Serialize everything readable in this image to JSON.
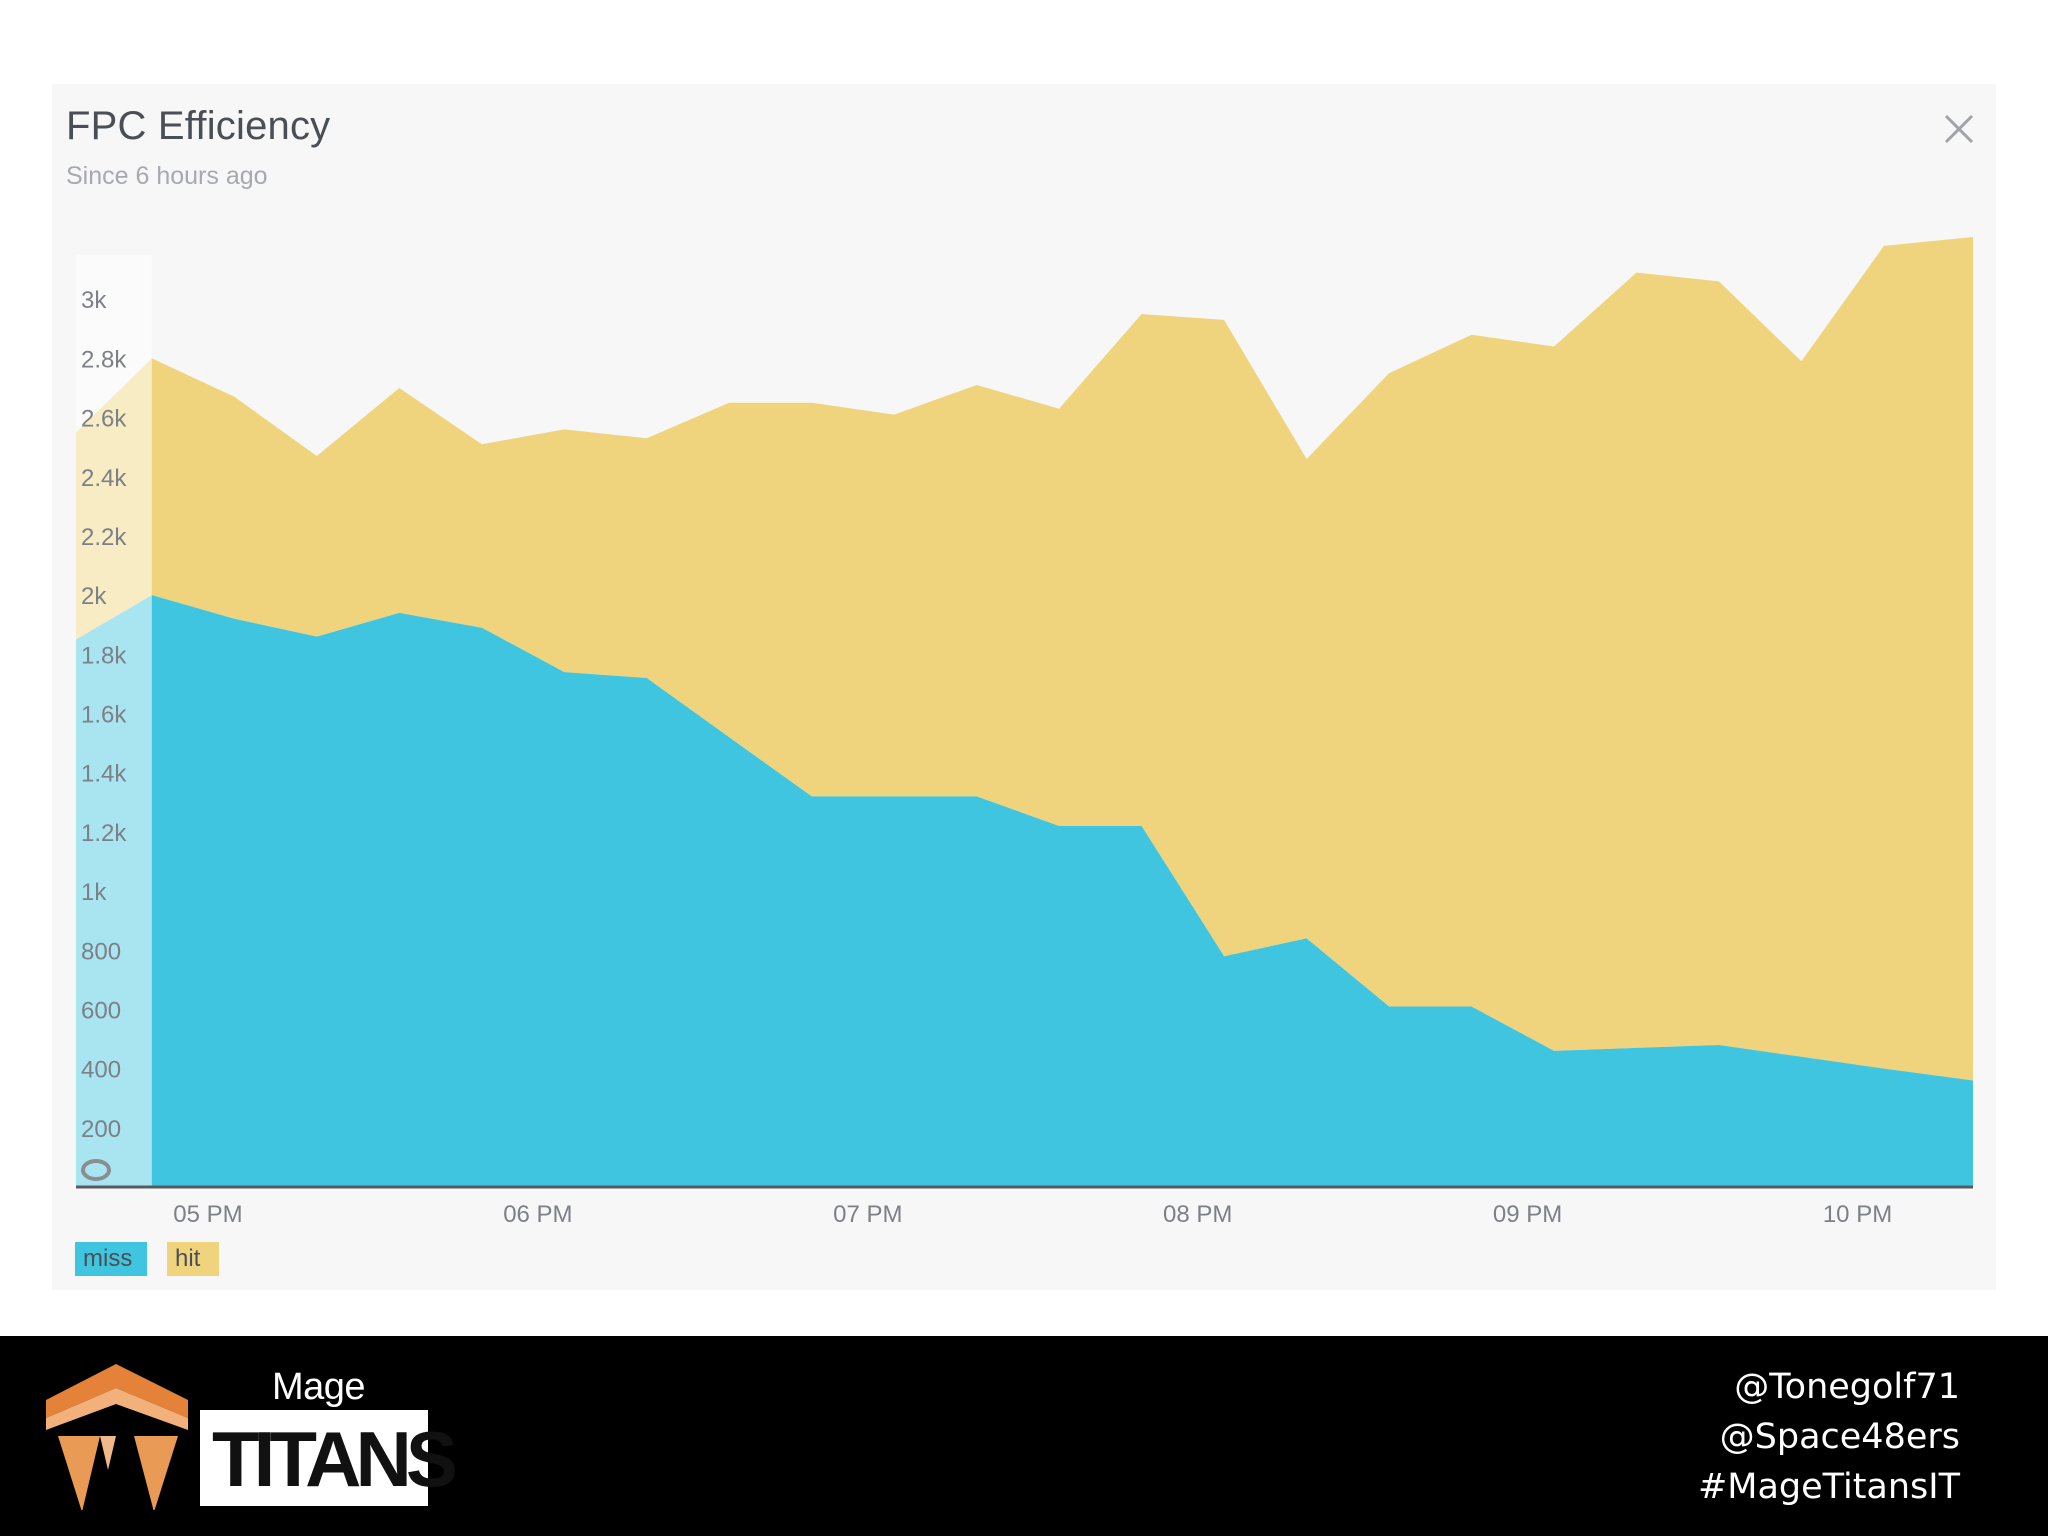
{
  "widget": {
    "title": "FPC Efficiency",
    "subtitle": "Since 6 hours ago"
  },
  "chart_data": {
    "type": "area",
    "stacked": true,
    "title": "FPC Efficiency",
    "subtitle": "Since 6 hours ago",
    "xlabel": "",
    "ylabel": "",
    "ylim": [
      0,
      3200
    ],
    "y_ticks": [
      "200",
      "400",
      "600",
      "800",
      "1k",
      "1.2k",
      "1.4k",
      "1.6k",
      "1.8k",
      "2k",
      "2.2k",
      "2.4k",
      "2.6k",
      "2.8k",
      "3k"
    ],
    "x_ticks": [
      {
        "label": "05 PM",
        "t": 17.0
      },
      {
        "label": "06 PM",
        "t": 18.0
      },
      {
        "label": "07 PM",
        "t": 19.0
      },
      {
        "label": "08 PM",
        "t": 20.0
      },
      {
        "label": "09 PM",
        "t": 21.0
      },
      {
        "label": "10 PM",
        "t": 22.0
      }
    ],
    "xlim": [
      16.6,
      22.35
    ],
    "highlight_until": 16.83,
    "x": [
      16.6,
      16.83,
      17.08,
      17.33,
      17.58,
      17.83,
      18.08,
      18.33,
      18.58,
      18.83,
      19.08,
      19.33,
      19.58,
      19.83,
      20.08,
      20.33,
      20.58,
      20.83,
      21.08,
      21.33,
      21.58,
      21.83,
      22.08,
      22.35
    ],
    "series": [
      {
        "name": "miss",
        "color": "#40c5e0",
        "values": [
          1850,
          2000,
          1920,
          1860,
          1940,
          1890,
          1740,
          1720,
          1520,
          1320,
          1320,
          1320,
          1220,
          1220,
          780,
          840,
          610,
          610,
          460,
          470,
          480,
          440,
          400,
          360
        ]
      },
      {
        "name": "hit",
        "color": "#f0d47d",
        "values": [
          700,
          800,
          750,
          610,
          760,
          620,
          820,
          810,
          1130,
          1330,
          1290,
          1390,
          1410,
          1730,
          2150,
          1620,
          2140,
          2270,
          2380,
          2620,
          2580,
          2350,
          2780,
          2850
        ]
      }
    ],
    "legend": [
      "miss",
      "hit"
    ],
    "legend_position": "bottom-left"
  },
  "footer": {
    "logo_top": "Mage",
    "logo_main": "TITANS",
    "handles": [
      "@Tonegolf71",
      "@Space48ers",
      "#MageTitansIT"
    ]
  },
  "colors": {
    "miss": "#40c5e0",
    "hit": "#f0d47d",
    "axis": "#555a60",
    "tick_text": "#7d8086",
    "footer_bg": "#000000"
  }
}
